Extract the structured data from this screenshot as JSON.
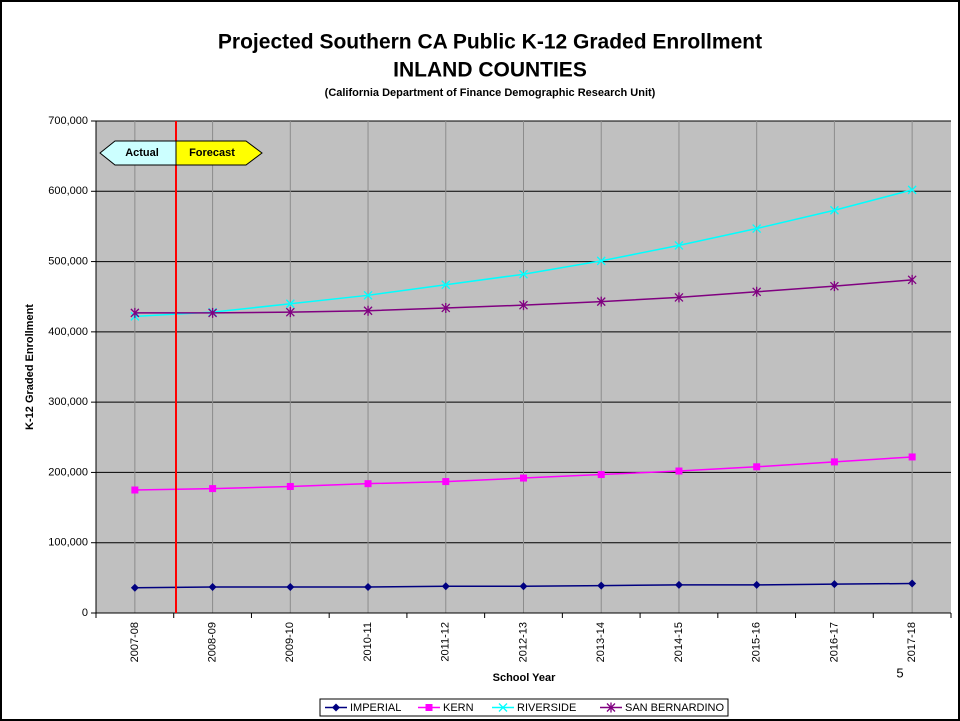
{
  "chart_data": {
    "type": "line",
    "title": "Projected Southern CA Public K-12 Graded Enrollment",
    "title_line2": "INLAND COUNTIES",
    "subtitle": "(California Department of Finance Demographic Research Unit)",
    "x_label": "School Year",
    "y_label": "K-12 Graded Enrollment",
    "annotations": [
      "Actual",
      "Forecast"
    ],
    "categories": [
      "2007-08",
      "2008-09",
      "2009-10",
      "2010-11",
      "2011-12",
      "2012-13",
      "2013-14",
      "2014-15",
      "2015-16",
      "2016-17",
      "2017-18"
    ],
    "series": [
      {
        "name": "IMPERIAL",
        "color": "#000080",
        "marker": "diamond",
        "values": [
          36000,
          37000,
          37000,
          37000,
          38000,
          38000,
          39000,
          40000,
          40000,
          41000,
          42000
        ]
      },
      {
        "name": "KERN",
        "color": "#ff00ff",
        "marker": "square",
        "values": [
          175000,
          177000,
          180000,
          184000,
          187000,
          192000,
          197000,
          202000,
          208000,
          215000,
          222000
        ]
      },
      {
        "name": "RIVERSIDE",
        "color": "#00ffff",
        "marker": "x",
        "values": [
          422000,
          428000,
          440000,
          452000,
          467000,
          482000,
          501000,
          523000,
          547000,
          573000,
          602000
        ]
      },
      {
        "name": "SAN BERNARDINO",
        "color": "#800080",
        "marker": "star",
        "values": [
          427000,
          427000,
          428000,
          430000,
          434000,
          438000,
          443000,
          449000,
          457000,
          465000,
          474000
        ]
      }
    ],
    "ylim": [
      0,
      700000
    ],
    "yticks": [
      0,
      {
        "value": 100000,
        "label": "100,000"
      },
      {
        "value": 200000,
        "label": "200,000"
      },
      {
        "value": 300000,
        "label": "300,000"
      },
      {
        "value": 400000,
        "label": "400,000"
      },
      {
        "value": 500000,
        "label": "500,000"
      },
      {
        "value": 600000,
        "label": "600,000"
      },
      {
        "value": 700000,
        "label": "700,000"
      }
    ],
    "grid": true,
    "legend": "bottom"
  },
  "page_number": "5"
}
